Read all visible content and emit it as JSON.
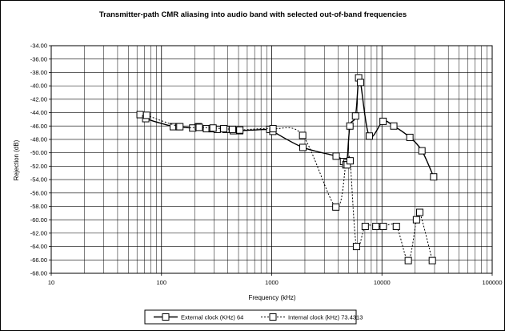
{
  "chart_data": {
    "type": "line",
    "title": "Transmitter-path CMR aliasing into audio band with selected out-of-band frequencies",
    "xlabel": "Frequency (kHz)",
    "ylabel": "Rejection (dB)",
    "xscale": "log",
    "xlim": [
      10,
      100000
    ],
    "ylim": [
      -68,
      -34
    ],
    "ystep": 2,
    "x_ticks": [
      10,
      100,
      1000,
      10000,
      100000
    ],
    "x_tick_labels": [
      "10",
      "100",
      "1000",
      "10000",
      "100000"
    ],
    "y_tick_labels": [
      "-34.00",
      "-36.00",
      "-38.00",
      "-40.00",
      "-42.00",
      "-44.00",
      "-46.00",
      "-48.00",
      "-50.00",
      "-52.00",
      "-54.00",
      "-56.00",
      "-58.00",
      "-60.00",
      "-62.00",
      "-64.00",
      "-66.00",
      "-68.00"
    ],
    "grid": true,
    "legend_position": "bottom",
    "series": [
      {
        "name": "External clock (KHz) 64",
        "line_style": "solid",
        "marker": "square",
        "color": "#000000",
        "x": [
          64,
          72,
          128,
          144,
          192,
          216,
          256,
          288,
          320,
          384,
          448,
          512,
          960,
          1024,
          1920,
          3840,
          4480,
          4800,
          5120,
          5760,
          6144,
          6400,
          7680,
          10240,
          12800,
          17920,
          23040,
          29440
        ],
        "y": [
          -44.3,
          -44.9,
          -46.1,
          -46.1,
          -46.3,
          -46.1,
          -46.4,
          -46.4,
          -46.5,
          -46.5,
          -46.7,
          -46.7,
          -46.5,
          -46.8,
          -49.2,
          -50.5,
          -51.3,
          -51.5,
          -46.0,
          -44.5,
          -38.8,
          -39.5,
          -47.5,
          -45.3,
          -46.0,
          -47.7,
          -49.7,
          -53.6
        ]
      },
      {
        "name": "Internal clock (kHz) 73.4313",
        "line_style": "dotted",
        "marker": "square",
        "color": "#000000",
        "x": [
          73.4,
          146.9,
          220.3,
          293.7,
          367.2,
          440.6,
          514.0,
          1028,
          1909,
          3818,
          4699,
          4846,
          5140,
          5874,
          7049,
          8811,
          10280,
          13510,
          17330,
          20560,
          22030,
          28630
        ],
        "y": [
          -44.4,
          -46.1,
          -46.2,
          -46.3,
          -46.4,
          -46.5,
          -46.6,
          -46.4,
          -47.4,
          -58.1,
          -51.8,
          -51.8,
          -51.2,
          -64.0,
          -61.0,
          -61.0,
          -61.0,
          -61.0,
          -66.1,
          -60.0,
          -58.9,
          -66.1
        ]
      }
    ]
  }
}
